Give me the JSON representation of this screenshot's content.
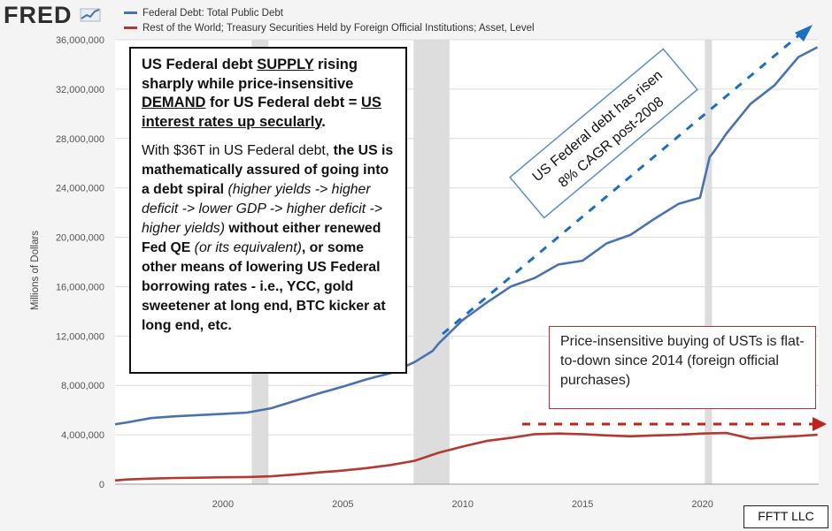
{
  "header": {
    "logo_text": "FRED",
    "legend": [
      {
        "label": "Federal Debt: Total Public Debt",
        "color": "#4a72b0"
      },
      {
        "label": "Rest of the World; Treasury Securities Held by Foreign Official Institutions; Asset, Level",
        "color": "#b43a2f"
      }
    ]
  },
  "annotations": {
    "box1_title": [
      {
        "text": "US Federal debt ",
        "bold": true
      },
      {
        "text": "SUPPLY",
        "bold": true,
        "underline": true
      },
      {
        "text": " rising sharply while price-insensitive ",
        "bold": true
      },
      {
        "text": "DEMAND",
        "bold": true,
        "underline": true
      },
      {
        "text": " for US Federal debt = ",
        "bold": true
      },
      {
        "text": "US interest rates up secularly",
        "bold": true,
        "underline": true
      },
      {
        "text": ".",
        "bold": true
      }
    ],
    "box1_body": [
      {
        "text": "With $36T in US Federal debt, "
      },
      {
        "text": "the US is mathematically assured of going into a debt spiral",
        "bold": true
      },
      {
        "text": " "
      },
      {
        "text": "(higher yields -> higher deficit -> lower GDP -> higher deficit -> higher yields)",
        "italic": true
      },
      {
        "text": " without either renewed Fed QE",
        "bold": true
      },
      {
        "text": " (or its equivalent)",
        "italic": true
      },
      {
        "text": ", or some other means of lowering US Federal borrowing rates - i.e., YCC, gold sweetener at long end, BTC kicker at long end, etc.",
        "bold": true
      }
    ],
    "box2_text": "Price-insensitive buying of USTs is flat-to-down since 2014 (foreign official purchases)",
    "rotated_line1": "US Federal debt has risen",
    "rotated_line2": "8% CAGR post-2008",
    "credit": "FFTT LLC"
  },
  "colors": {
    "debt": "#4a72b0",
    "foreign": "#b43a2f",
    "arrow_blue": "#1f6fbf",
    "arrow_red": "#c0231a",
    "recession": "#dddddd",
    "grid": "#dcdcdc"
  },
  "chart_data": {
    "type": "line",
    "ylabel": "Millions of Dollars",
    "xlabel": "",
    "ylim": [
      0,
      36000000
    ],
    "xlim": [
      1995.5,
      2024.85
    ],
    "xticks": [
      2000,
      2005,
      2010,
      2015,
      2020
    ],
    "yticks": [
      0,
      4000000,
      8000000,
      12000000,
      16000000,
      20000000,
      24000000,
      28000000,
      32000000,
      36000000
    ],
    "ytick_labels": [
      "0",
      "4,000,000",
      "8,000,000",
      "12,000,000",
      "16,000,000",
      "20,000,000",
      "24,000,000",
      "28,000,000",
      "32,000,000",
      "36,000,000"
    ],
    "grid": true,
    "legend_position": "top",
    "recessions": [
      [
        2001.2,
        2001.9
      ],
      [
        2007.95,
        2009.45
      ],
      [
        2020.1,
        2020.4
      ]
    ],
    "series": [
      {
        "name": "Federal Debt: Total Public Debt",
        "x": [
          1995.5,
          1996,
          1997,
          1998,
          1999,
          2000,
          2001,
          2002,
          2003,
          2004,
          2005,
          2006,
          2007,
          2008,
          2008.75,
          2009,
          2010,
          2011,
          2012,
          2013,
          2014,
          2015,
          2016,
          2017,
          2018,
          2019,
          2019.9,
          2020.3,
          2020.5,
          2021,
          2022,
          2023,
          2024,
          2024.8
        ],
        "y": [
          4850000,
          5000000,
          5350000,
          5500000,
          5600000,
          5700000,
          5800000,
          6150000,
          6750000,
          7350000,
          7900000,
          8500000,
          9000000,
          9900000,
          10800000,
          11400000,
          13300000,
          14700000,
          16000000,
          16700000,
          17800000,
          18100000,
          19500000,
          20200000,
          21500000,
          22700000,
          23200000,
          26500000,
          27000000,
          28400000,
          30800000,
          32300000,
          34600000,
          35400000
        ]
      },
      {
        "name": "Rest of the World; Treasury Securities Held by Foreign Official Institutions; Asset, Level",
        "x": [
          1995.5,
          1996,
          1997,
          1998,
          1999,
          2000,
          2001,
          2002,
          2003,
          2004,
          2005,
          2006,
          2007,
          2008,
          2009,
          2010,
          2011,
          2012,
          2013,
          2014,
          2015,
          2016,
          2017,
          2018,
          2019,
          2020,
          2021,
          2022,
          2023,
          2024,
          2024.8
        ],
        "y": [
          300000,
          380000,
          450000,
          500000,
          520000,
          560000,
          580000,
          640000,
          780000,
          950000,
          1100000,
          1300000,
          1550000,
          1900000,
          2550000,
          3050000,
          3500000,
          3750000,
          4050000,
          4100000,
          4050000,
          3950000,
          3880000,
          3950000,
          4000000,
          4100000,
          4150000,
          3700000,
          3800000,
          3900000,
          4000000
        ]
      }
    ]
  }
}
